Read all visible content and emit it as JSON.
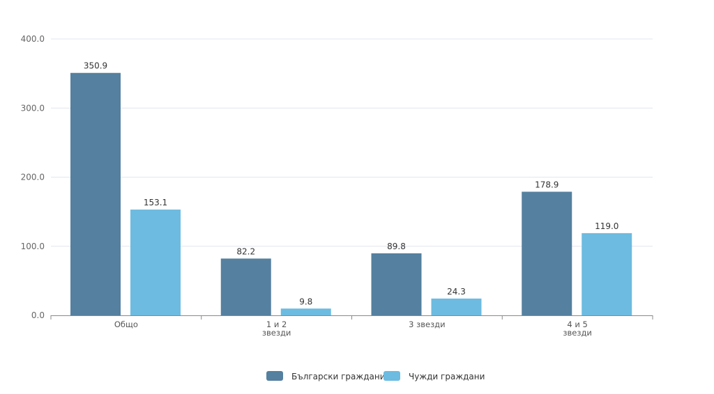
{
  "chart_data": {
    "type": "bar",
    "title": "",
    "xlabel": "",
    "ylabel": "",
    "ylim": [
      0,
      400
    ],
    "yticks": [
      "0.0",
      "100.0",
      "200.0",
      "300.0",
      "400.0"
    ],
    "ytick_values": [
      0,
      100,
      200,
      300,
      400
    ],
    "grid": true,
    "legend_position": "bottom-center",
    "categories": [
      [
        "Общо"
      ],
      [
        "1 и 2",
        "звезди"
      ],
      [
        "3 звезди"
      ],
      [
        "4 и 5",
        "звезди"
      ]
    ],
    "series": [
      {
        "name": "Български граждани",
        "color": "#55809f",
        "values": [
          350.9,
          82.2,
          89.8,
          178.9
        ],
        "labels": [
          "350.9",
          "82.2",
          "89.8",
          "178.9"
        ]
      },
      {
        "name": "Чужди граждани",
        "color": "#6dbbe0",
        "values": [
          153.1,
          9.8,
          24.3,
          119.0
        ],
        "labels": [
          "153.1",
          "9.8",
          "24.3",
          "119.0"
        ]
      }
    ]
  }
}
